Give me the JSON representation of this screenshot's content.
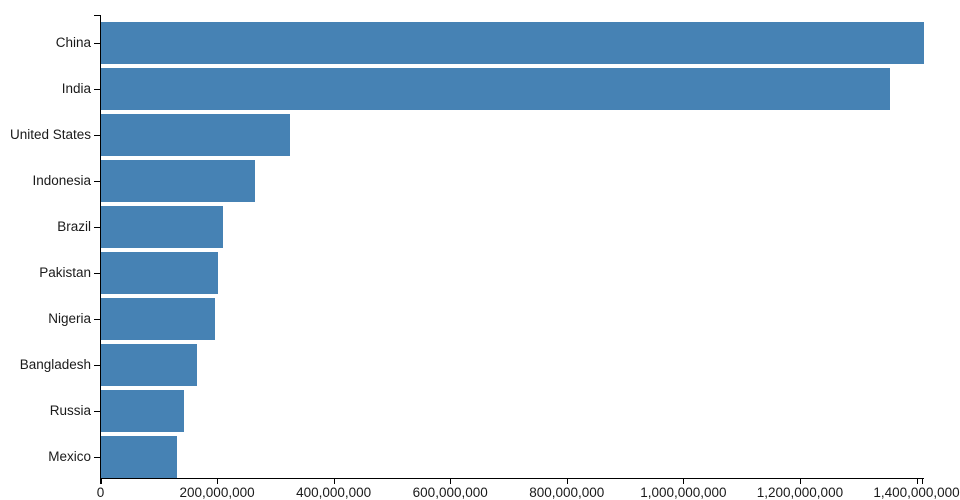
{
  "chart_data": {
    "type": "bar",
    "orientation": "horizontal",
    "title": "",
    "xlabel": "",
    "ylabel": "",
    "grid": false,
    "legend": false,
    "categories": [
      "China",
      "India",
      "United States",
      "Indonesia",
      "Brazil",
      "Pakistan",
      "Nigeria",
      "Bangladesh",
      "Russia",
      "Mexico"
    ],
    "values": [
      1412000000,
      1353000000,
      325000000,
      265000000,
      209000000,
      200000000,
      195000000,
      165000000,
      143000000,
      130000000
    ],
    "x_ticks": [
      0,
      200000000,
      400000000,
      600000000,
      800000000,
      1000000000,
      1200000000,
      1400000000
    ],
    "x_tick_labels": [
      "0",
      "200,000,000",
      "400,000,000",
      "600,000,000",
      "800,000,000",
      "1,000,000,000",
      "1,200,000,000",
      "1,400,000,000"
    ],
    "xlim": [
      0,
      1412000000
    ],
    "colors": {
      "bar": "#4682b4",
      "axis": "#000000",
      "text": "#1a1a1a"
    }
  }
}
